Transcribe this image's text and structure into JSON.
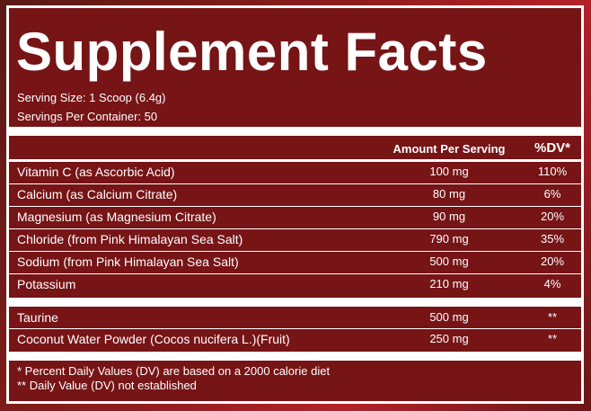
{
  "title": "Supplement Facts",
  "serving_size": "Serving Size: 1 Scoop (6.4g)",
  "servings_per_container": "Servings Per Container: 50",
  "header": {
    "amount": "Amount Per Serving",
    "dv": "%DV*"
  },
  "rows": [
    [
      "Vitamin C (as Ascorbic Acid)",
      "100 mg",
      "110%"
    ],
    [
      "Calcium (as Calcium Citrate)",
      "80 mg",
      "6%"
    ],
    [
      "Magnesium (as Magnesium Citrate)",
      "90 mg",
      "20%"
    ],
    [
      "Chloride (from Pink Himalayan Sea Salt)",
      "790 mg",
      "35%"
    ],
    [
      "Sodium (from Pink Himalayan Sea Salt)",
      "500 mg",
      "20%"
    ],
    [
      "Potassium",
      "210 mg",
      "4%"
    ]
  ],
  "other_rows": [
    [
      "Taurine",
      "500 mg",
      "**"
    ],
    [
      "Coconut Water Powder (Cocos nucifera L.)(Fruit)",
      "250 mg",
      "**"
    ]
  ],
  "footnotes": [
    "* Percent Daily Values (DV) are based on a 2000 calorie diet",
    "** Daily Value (DV) not established"
  ]
}
